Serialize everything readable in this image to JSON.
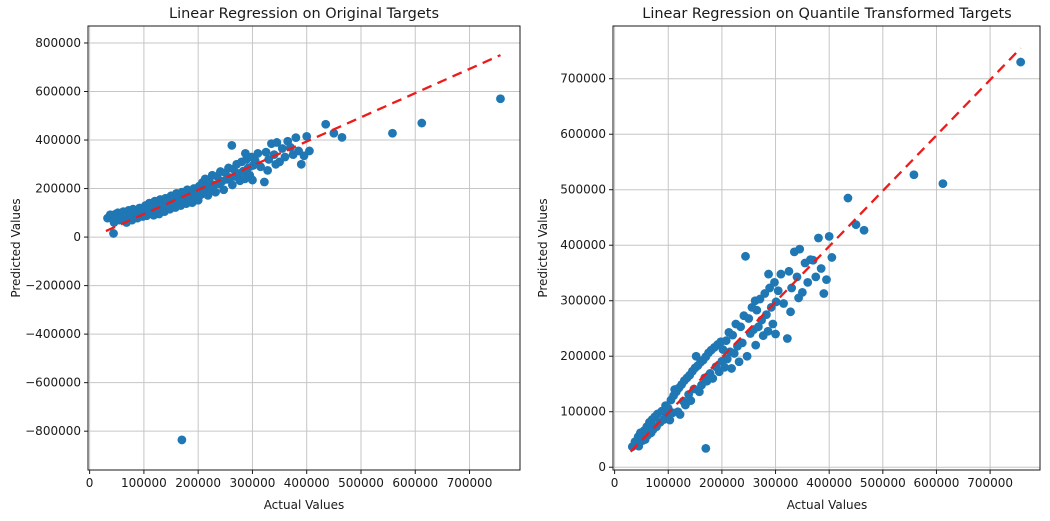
{
  "figure": {
    "background": "#ffffff"
  },
  "chart_data": [
    {
      "type": "scatter",
      "title": "Linear Regression on Original Targets",
      "xlabel": "Actual Values",
      "ylabel": "Predicted Values",
      "xlim": [
        -3000,
        793000
      ],
      "ylim": [
        -960000,
        870000
      ],
      "xticks": [
        0,
        100000,
        200000,
        300000,
        400000,
        500000,
        600000,
        700000
      ],
      "yticks": [
        -800000,
        -600000,
        -400000,
        -200000,
        0,
        200000,
        400000,
        600000,
        800000
      ],
      "grid": true,
      "legend": "none",
      "marker_color": "#1f77b4",
      "identity_line": {
        "style": "dashed",
        "color": "#ee1b1b",
        "x": [
          30000,
          757000
        ],
        "y": [
          25000,
          750000
        ]
      },
      "points": [
        [
          33000,
          78000
        ],
        [
          38000,
          92000
        ],
        [
          40000,
          88000
        ],
        [
          44000,
          15000
        ],
        [
          45000,
          60000
        ],
        [
          48000,
          95000
        ],
        [
          50000,
          85000
        ],
        [
          52000,
          100000
        ],
        [
          55000,
          70000
        ],
        [
          57000,
          92000
        ],
        [
          60000,
          78000
        ],
        [
          62000,
          105000
        ],
        [
          65000,
          88000
        ],
        [
          68000,
          60000
        ],
        [
          70000,
          95000
        ],
        [
          72000,
          110000
        ],
        [
          75000,
          82000
        ],
        [
          78000,
          70000
        ],
        [
          80000,
          115000
        ],
        [
          85000,
          95000
        ],
        [
          88000,
          78000
        ],
        [
          92000,
          120000
        ],
        [
          95000,
          100000
        ],
        [
          98000,
          85000
        ],
        [
          100000,
          95000
        ],
        [
          103000,
          130000
        ],
        [
          105000,
          88000
        ],
        [
          108000,
          118000
        ],
        [
          110000,
          140000
        ],
        [
          112000,
          100000
        ],
        [
          115000,
          125000
        ],
        [
          118000,
          90000
        ],
        [
          120000,
          148000
        ],
        [
          122000,
          110000
        ],
        [
          125000,
          135000
        ],
        [
          128000,
          95000
        ],
        [
          130000,
          155000
        ],
        [
          132000,
          120000
        ],
        [
          135000,
          142000
        ],
        [
          138000,
          105000
        ],
        [
          140000,
          160000
        ],
        [
          142000,
          128000
        ],
        [
          145000,
          150000
        ],
        [
          148000,
          115000
        ],
        [
          150000,
          170000
        ],
        [
          152000,
          135000
        ],
        [
          155000,
          158000
        ],
        [
          158000,
          122000
        ],
        [
          160000,
          180000
        ],
        [
          162000,
          145000
        ],
        [
          165000,
          160000
        ],
        [
          168000,
          130000
        ],
        [
          170000,
          185000
        ],
        [
          172000,
          150000
        ],
        [
          175000,
          165000
        ],
        [
          178000,
          138000
        ],
        [
          180000,
          195000
        ],
        [
          183000,
          158000
        ],
        [
          186000,
          172000
        ],
        [
          189000,
          142000
        ],
        [
          192000,
          200000
        ],
        [
          195000,
          168000
        ],
        [
          198000,
          185000
        ],
        [
          200000,
          152000
        ],
        [
          202000,
          210000
        ],
        [
          205000,
          175000
        ],
        [
          208000,
          225000
        ],
        [
          210000,
          190000
        ],
        [
          213000,
          240000
        ],
        [
          215000,
          205000
        ],
        [
          218000,
          172000
        ],
        [
          220000,
          235000
        ],
        [
          223000,
          200000
        ],
        [
          226000,
          255000
        ],
        [
          229000,
          215000
        ],
        [
          232000,
          185000
        ],
        [
          235000,
          250000
        ],
        [
          238000,
          220000
        ],
        [
          241000,
          270000
        ],
        [
          244000,
          230000
        ],
        [
          247000,
          195000
        ],
        [
          250000,
          265000
        ],
        [
          253000,
          238000
        ],
        [
          256000,
          285000
        ],
        [
          259000,
          245000
        ],
        [
          262000,
          378000
        ],
        [
          263000,
          215000
        ],
        [
          265000,
          280000
        ],
        [
          268000,
          250000
        ],
        [
          271000,
          300000
        ],
        [
          274000,
          262000
        ],
        [
          277000,
          232000
        ],
        [
          280000,
          310000
        ],
        [
          283000,
          272000
        ],
        [
          286000,
          240000
        ],
        [
          289000,
          320000
        ],
        [
          292000,
          285000
        ],
        [
          295000,
          255000
        ],
        [
          298000,
          330000
        ],
        [
          300000,
          235000
        ],
        [
          301000,
          295000
        ],
        [
          287000,
          345000
        ],
        [
          305000,
          315000
        ],
        [
          310000,
          345000
        ],
        [
          315000,
          290000
        ],
        [
          322000,
          227000
        ],
        [
          325000,
          350000
        ],
        [
          330000,
          320000
        ],
        [
          335000,
          385000
        ],
        [
          340000,
          340000
        ],
        [
          345000,
          390000
        ],
        [
          350000,
          310000
        ],
        [
          355000,
          365000
        ],
        [
          360000,
          330000
        ],
        [
          365000,
          395000
        ],
        [
          370000,
          370000
        ],
        [
          375000,
          340000
        ],
        [
          380000,
          410000
        ],
        [
          385000,
          355000
        ],
        [
          390000,
          300000
        ],
        [
          395000,
          335000
        ],
        [
          400000,
          415000
        ],
        [
          343000,
          300000
        ],
        [
          328000,
          275000
        ],
        [
          405000,
          355000
        ],
        [
          435000,
          465000
        ],
        [
          450000,
          428000
        ],
        [
          465000,
          411000
        ],
        [
          558000,
          428000
        ],
        [
          612000,
          470000
        ],
        [
          757000,
          570000
        ],
        [
          170000,
          -836000
        ]
      ]
    },
    {
      "type": "scatter",
      "title": "Linear Regression on Quantile Transformed Targets",
      "xlabel": "Actual Values",
      "ylabel": "Predicted Values",
      "xlim": [
        -3000,
        793000
      ],
      "ylim": [
        -5000,
        795000
      ],
      "xticks": [
        0,
        100000,
        200000,
        300000,
        400000,
        500000,
        600000,
        700000
      ],
      "yticks": [
        0,
        100000,
        200000,
        300000,
        400000,
        500000,
        600000,
        700000
      ],
      "grid": true,
      "legend": "none",
      "marker_color": "#1f77b4",
      "identity_line": {
        "style": "dashed",
        "color": "#ee1b1b",
        "x": [
          30000,
          757000
        ],
        "y": [
          28000,
          755000
        ]
      },
      "points": [
        [
          33000,
          37000
        ],
        [
          38000,
          46000
        ],
        [
          40000,
          42000
        ],
        [
          44000,
          55000
        ],
        [
          45000,
          38000
        ],
        [
          48000,
          62000
        ],
        [
          50000,
          52000
        ],
        [
          52000,
          48000
        ],
        [
          55000,
          66000
        ],
        [
          57000,
          50000
        ],
        [
          60000,
          73000
        ],
        [
          62000,
          58000
        ],
        [
          65000,
          81000
        ],
        [
          68000,
          62000
        ],
        [
          70000,
          86000
        ],
        [
          72000,
          68000
        ],
        [
          75000,
          91000
        ],
        [
          78000,
          73000
        ],
        [
          80000,
          96000
        ],
        [
          85000,
          81000
        ],
        [
          88000,
          101000
        ],
        [
          92000,
          86000
        ],
        [
          95000,
          111000
        ],
        [
          98000,
          93000
        ],
        [
          100000,
          106000
        ],
        [
          103000,
          85000
        ],
        [
          105000,
          121000
        ],
        [
          108000,
          98000
        ],
        [
          110000,
          129000
        ],
        [
          112000,
          140000
        ],
        [
          115000,
          136000
        ],
        [
          118000,
          100000
        ],
        [
          120000,
          143000
        ],
        [
          122000,
          95000
        ],
        [
          125000,
          149000
        ],
        [
          128000,
          119000
        ],
        [
          130000,
          156000
        ],
        [
          132000,
          112000
        ],
        [
          135000,
          161000
        ],
        [
          138000,
          131000
        ],
        [
          140000,
          166000
        ],
        [
          142000,
          120000
        ],
        [
          145000,
          173000
        ],
        [
          148000,
          141000
        ],
        [
          150000,
          179000
        ],
        [
          152000,
          200000
        ],
        [
          155000,
          183000
        ],
        [
          158000,
          136000
        ],
        [
          160000,
          189000
        ],
        [
          162000,
          148000
        ],
        [
          165000,
          193000
        ],
        [
          168000,
          161000
        ],
        [
          170000,
          199000
        ],
        [
          172000,
          155000
        ],
        [
          175000,
          206000
        ],
        [
          178000,
          169000
        ],
        [
          180000,
          211000
        ],
        [
          183000,
          160000
        ],
        [
          186000,
          216000
        ],
        [
          189000,
          181000
        ],
        [
          192000,
          221000
        ],
        [
          195000,
          172000
        ],
        [
          198000,
          226000
        ],
        [
          200000,
          191000
        ],
        [
          202000,
          212000
        ],
        [
          205000,
          180000
        ],
        [
          208000,
          228000
        ],
        [
          210000,
          195000
        ],
        [
          213000,
          243000
        ],
        [
          215000,
          208000
        ],
        [
          218000,
          178000
        ],
        [
          220000,
          238000
        ],
        [
          223000,
          205000
        ],
        [
          226000,
          258000
        ],
        [
          229000,
          218000
        ],
        [
          232000,
          190000
        ],
        [
          235000,
          253000
        ],
        [
          238000,
          224000
        ],
        [
          241000,
          273000
        ],
        [
          244000,
          380000
        ],
        [
          247000,
          200000
        ],
        [
          250000,
          268000
        ],
        [
          253000,
          241000
        ],
        [
          256000,
          288000
        ],
        [
          259000,
          248000
        ],
        [
          262000,
          300000
        ],
        [
          263000,
          220000
        ],
        [
          265000,
          283000
        ],
        [
          268000,
          253000
        ],
        [
          271000,
          303000
        ],
        [
          274000,
          265000
        ],
        [
          277000,
          237000
        ],
        [
          280000,
          313000
        ],
        [
          283000,
          275000
        ],
        [
          286000,
          245000
        ],
        [
          289000,
          323000
        ],
        [
          292000,
          288000
        ],
        [
          295000,
          258000
        ],
        [
          298000,
          333000
        ],
        [
          300000,
          240000
        ],
        [
          301000,
          298000
        ],
        [
          287000,
          348000
        ],
        [
          305000,
          318000
        ],
        [
          310000,
          348000
        ],
        [
          315000,
          295000
        ],
        [
          322000,
          232000
        ],
        [
          325000,
          353000
        ],
        [
          330000,
          323000
        ],
        [
          335000,
          388000
        ],
        [
          340000,
          343000
        ],
        [
          345000,
          393000
        ],
        [
          350000,
          315000
        ],
        [
          355000,
          368000
        ],
        [
          360000,
          333000
        ],
        [
          365000,
          374000
        ],
        [
          370000,
          373000
        ],
        [
          375000,
          343000
        ],
        [
          380000,
          413000
        ],
        [
          385000,
          358000
        ],
        [
          390000,
          313000
        ],
        [
          395000,
          338000
        ],
        [
          400000,
          416000
        ],
        [
          343000,
          305000
        ],
        [
          328000,
          280000
        ],
        [
          405000,
          378000
        ],
        [
          435000,
          485000
        ],
        [
          450000,
          437000
        ],
        [
          465000,
          427000
        ],
        [
          558000,
          527000
        ],
        [
          612000,
          511000
        ],
        [
          757000,
          730000
        ],
        [
          170000,
          34000
        ]
      ]
    }
  ],
  "style": {
    "grid_color": "#c6c6c6",
    "spine_color": "#1a1a1a",
    "tick_label_color": "#1a1a1a"
  }
}
